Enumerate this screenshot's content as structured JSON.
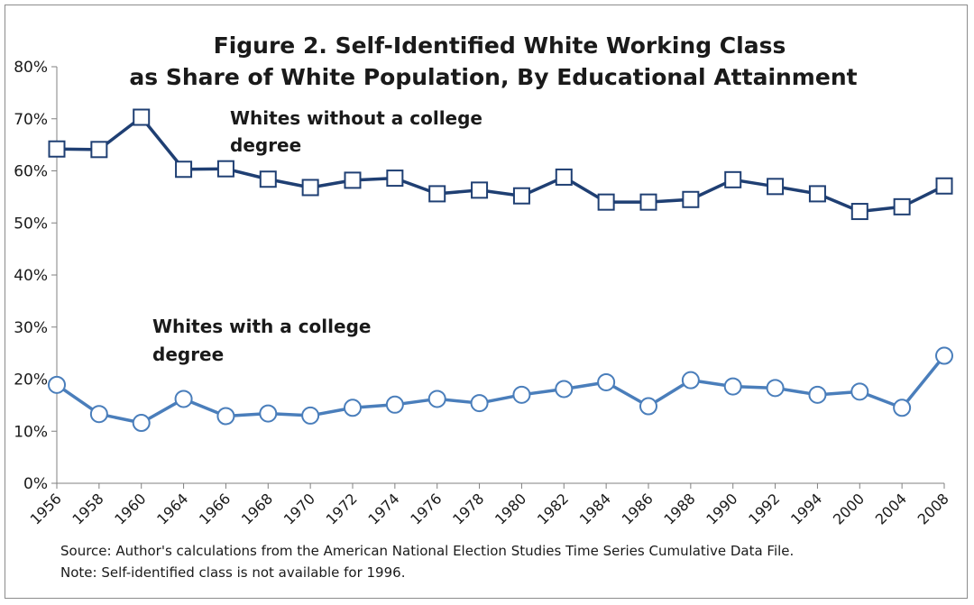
{
  "chart_data": {
    "type": "line",
    "title_lines": [
      "Figure 2. Self-Identified White Working Class",
      "as Share of White Population, By Educational Attainment"
    ],
    "categories": [
      "1956",
      "1958",
      "1960",
      "1964",
      "1966",
      "1968",
      "1970",
      "1972",
      "1974",
      "1976",
      "1978",
      "1980",
      "1982",
      "1984",
      "1986",
      "1988",
      "1990",
      "1992",
      "1994",
      "2000",
      "2004",
      "2008"
    ],
    "y_ticks": [
      "0%",
      "10%",
      "20%",
      "30%",
      "40%",
      "50%",
      "60%",
      "70%",
      "80%"
    ],
    "ylim": [
      0,
      80
    ],
    "y_unit": "%",
    "grid": false,
    "series": [
      {
        "name_lines": [
          "Whites without a college",
          "degree"
        ],
        "marker": "square",
        "color": "#1f3f73",
        "values": [
          64.2,
          64.1,
          70.3,
          60.3,
          60.4,
          58.4,
          56.8,
          58.2,
          58.6,
          55.6,
          56.3,
          55.2,
          58.8,
          54.0,
          54.0,
          54.5,
          58.3,
          57.0,
          55.6,
          52.2,
          53.1,
          57.1
        ]
      },
      {
        "name_lines": [
          "Whites with a college",
          "degree"
        ],
        "marker": "circle",
        "color": "#4a7ebb",
        "values": [
          18.9,
          13.3,
          11.6,
          16.2,
          12.9,
          13.4,
          13.0,
          14.5,
          15.1,
          16.2,
          15.4,
          17.0,
          18.1,
          19.4,
          14.8,
          19.8,
          18.6,
          18.3,
          17.0,
          17.6,
          14.5,
          24.5
        ]
      }
    ],
    "footnotes": [
      "Source: Author's calculations from the American National Election Studies Time Series Cumulative Data File.",
      "Note: Self-identified class is not available for 1996."
    ]
  }
}
